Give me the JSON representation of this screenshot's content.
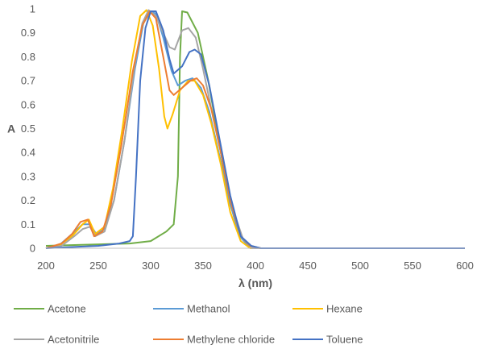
{
  "chart_data": {
    "type": "line",
    "title": "",
    "xlabel": "λ (nm)",
    "ylabel": "A",
    "xlim": [
      200,
      600
    ],
    "ylim": [
      0,
      1
    ],
    "x_ticks": [
      "200",
      "250",
      "300",
      "350",
      "400",
      "450",
      "500",
      "550",
      "600"
    ],
    "y_ticks": [
      "0",
      "0.1",
      "0.2",
      "0.3",
      "0.4",
      "0.5",
      "0.6",
      "0.7",
      "0.8",
      "0.9",
      "1"
    ],
    "grid": false,
    "legend_position": "bottom",
    "series": [
      {
        "name": "Acetone",
        "color": "#70AD47",
        "points": [
          [
            200,
            0.01
          ],
          [
            280,
            0.02
          ],
          [
            300,
            0.03
          ],
          [
            315,
            0.07
          ],
          [
            322,
            0.1
          ],
          [
            326,
            0.3
          ],
          [
            328,
            0.8
          ],
          [
            330,
            0.99
          ],
          [
            335,
            0.985
          ],
          [
            345,
            0.9
          ],
          [
            355,
            0.7
          ],
          [
            365,
            0.45
          ],
          [
            375,
            0.2
          ],
          [
            385,
            0.05
          ],
          [
            395,
            0.01
          ],
          [
            405,
            0.0
          ],
          [
            600,
            0.0
          ]
        ]
      },
      {
        "name": "Methanol",
        "color": "#5B9BD5",
        "points": [
          [
            200,
            0.0
          ],
          [
            212,
            0.01
          ],
          [
            225,
            0.06
          ],
          [
            235,
            0.1
          ],
          [
            242,
            0.1
          ],
          [
            248,
            0.06
          ],
          [
            256,
            0.08
          ],
          [
            265,
            0.2
          ],
          [
            275,
            0.45
          ],
          [
            285,
            0.75
          ],
          [
            293,
            0.94
          ],
          [
            300,
            0.99
          ],
          [
            305,
            0.98
          ],
          [
            312,
            0.88
          ],
          [
            320,
            0.74
          ],
          [
            326,
            0.68
          ],
          [
            333,
            0.7
          ],
          [
            340,
            0.71
          ],
          [
            348,
            0.67
          ],
          [
            356,
            0.57
          ],
          [
            365,
            0.4
          ],
          [
            375,
            0.2
          ],
          [
            385,
            0.05
          ],
          [
            393,
            0.01
          ],
          [
            405,
            0.0
          ],
          [
            600,
            0.0
          ]
        ]
      },
      {
        "name": "Hexane",
        "color": "#FFC000",
        "points": [
          [
            200,
            0.0
          ],
          [
            212,
            0.01
          ],
          [
            225,
            0.05
          ],
          [
            235,
            0.1
          ],
          [
            241,
            0.12
          ],
          [
            247,
            0.06
          ],
          [
            256,
            0.09
          ],
          [
            264,
            0.25
          ],
          [
            273,
            0.5
          ],
          [
            282,
            0.78
          ],
          [
            290,
            0.97
          ],
          [
            296,
            0.995
          ],
          [
            302,
            0.93
          ],
          [
            308,
            0.75
          ],
          [
            313,
            0.55
          ],
          [
            316,
            0.5
          ],
          [
            321,
            0.56
          ],
          [
            328,
            0.66
          ],
          [
            336,
            0.7
          ],
          [
            342,
            0.7
          ],
          [
            350,
            0.64
          ],
          [
            358,
            0.52
          ],
          [
            367,
            0.35
          ],
          [
            376,
            0.15
          ],
          [
            386,
            0.03
          ],
          [
            395,
            0.0
          ],
          [
            600,
            0.0
          ]
        ]
      },
      {
        "name": "Acetonitrile",
        "color": "#A5A5A5",
        "points": [
          [
            200,
            0.0
          ],
          [
            215,
            0.01
          ],
          [
            227,
            0.05
          ],
          [
            235,
            0.08
          ],
          [
            242,
            0.09
          ],
          [
            247,
            0.05
          ],
          [
            256,
            0.07
          ],
          [
            265,
            0.2
          ],
          [
            275,
            0.45
          ],
          [
            285,
            0.77
          ],
          [
            292,
            0.94
          ],
          [
            298,
            0.995
          ],
          [
            305,
            0.97
          ],
          [
            312,
            0.9
          ],
          [
            318,
            0.84
          ],
          [
            323,
            0.83
          ],
          [
            330,
            0.91
          ],
          [
            336,
            0.92
          ],
          [
            343,
            0.88
          ],
          [
            350,
            0.75
          ],
          [
            358,
            0.58
          ],
          [
            368,
            0.38
          ],
          [
            378,
            0.17
          ],
          [
            388,
            0.04
          ],
          [
            397,
            0.0
          ],
          [
            600,
            0.0
          ]
        ]
      },
      {
        "name": "Methylene chloride",
        "color": "#ED7D31",
        "points": [
          [
            200,
            0.0
          ],
          [
            215,
            0.02
          ],
          [
            225,
            0.06
          ],
          [
            233,
            0.11
          ],
          [
            240,
            0.12
          ],
          [
            246,
            0.05
          ],
          [
            254,
            0.07
          ],
          [
            262,
            0.18
          ],
          [
            272,
            0.43
          ],
          [
            283,
            0.74
          ],
          [
            292,
            0.93
          ],
          [
            299,
            0.99
          ],
          [
            305,
            0.96
          ],
          [
            312,
            0.8
          ],
          [
            318,
            0.66
          ],
          [
            322,
            0.64
          ],
          [
            330,
            0.67
          ],
          [
            338,
            0.7
          ],
          [
            344,
            0.71
          ],
          [
            350,
            0.68
          ],
          [
            358,
            0.58
          ],
          [
            367,
            0.4
          ],
          [
            376,
            0.2
          ],
          [
            386,
            0.05
          ],
          [
            395,
            0.01
          ],
          [
            405,
            0.0
          ],
          [
            600,
            0.0
          ]
        ]
      },
      {
        "name": "Toluene",
        "color": "#4472C4",
        "points": [
          [
            200,
            0.0
          ],
          [
            250,
            0.01
          ],
          [
            270,
            0.02
          ],
          [
            280,
            0.03
          ],
          [
            283,
            0.05
          ],
          [
            286,
            0.3
          ],
          [
            290,
            0.7
          ],
          [
            295,
            0.92
          ],
          [
            300,
            0.99
          ],
          [
            305,
            0.99
          ],
          [
            312,
            0.91
          ],
          [
            318,
            0.79
          ],
          [
            322,
            0.73
          ],
          [
            330,
            0.76
          ],
          [
            337,
            0.82
          ],
          [
            342,
            0.83
          ],
          [
            348,
            0.81
          ],
          [
            356,
            0.68
          ],
          [
            366,
            0.45
          ],
          [
            376,
            0.22
          ],
          [
            386,
            0.05
          ],
          [
            396,
            0.01
          ],
          [
            405,
            0.0
          ],
          [
            600,
            0.0
          ]
        ]
      }
    ]
  }
}
